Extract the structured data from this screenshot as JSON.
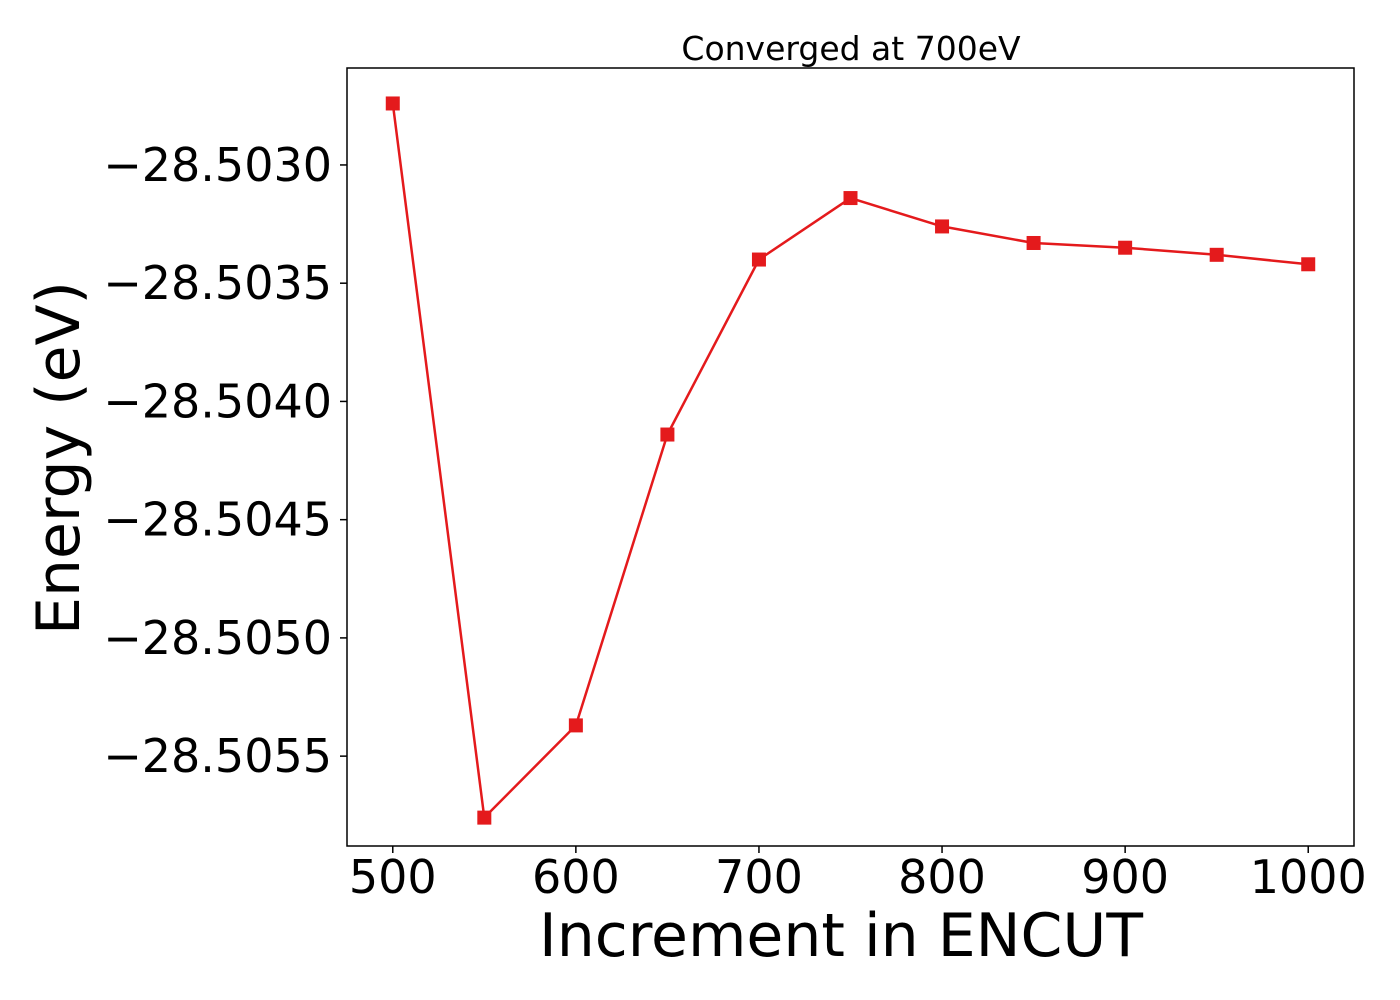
{
  "chart_data": {
    "type": "line",
    "title": "Converged at 700eV",
    "xlabel": "Increment in ENCUT",
    "ylabel": "Energy (eV)",
    "xlim": [
      475,
      1025
    ],
    "ylim": [
      -28.50588,
      -28.50259
    ],
    "x_ticks": [
      500,
      600,
      700,
      800,
      900,
      1000
    ],
    "x_tick_labels": [
      "500",
      "600",
      "700",
      "800",
      "900",
      "1000"
    ],
    "y_ticks": [
      -28.503,
      -28.5035,
      -28.504,
      -28.5045,
      -28.505,
      -28.5055
    ],
    "y_tick_labels": [
      "−28.5030",
      "−28.5035",
      "−28.5040",
      "−28.5045",
      "−28.5050",
      "−28.5055"
    ],
    "grid": false,
    "series": [
      {
        "color": "#e41a1c",
        "marker": "square",
        "x": [
          500,
          550,
          600,
          650,
          700,
          750,
          800,
          850,
          900,
          950,
          1000
        ],
        "y": [
          -28.50274,
          -28.50576,
          -28.50537,
          -28.50414,
          -28.5034,
          -28.50314,
          -28.50326,
          -28.50333,
          -28.50335,
          -28.50338,
          -28.50342
        ]
      }
    ]
  }
}
